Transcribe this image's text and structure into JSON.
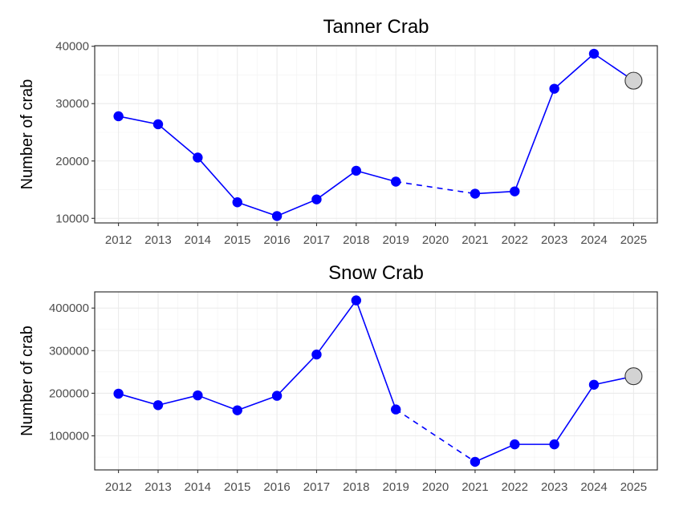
{
  "chart_data": [
    {
      "type": "line",
      "title": "Tanner Crab",
      "xlabel": "",
      "ylabel": "Number of crab",
      "x": [
        2012,
        2013,
        2014,
        2015,
        2016,
        2017,
        2018,
        2019,
        2020,
        2021,
        2022,
        2023,
        2024,
        2025
      ],
      "xticks": [
        "2012",
        "2013",
        "2014",
        "2015",
        "2016",
        "2017",
        "2018",
        "2019",
        "2020",
        "2021",
        "2022",
        "2023",
        "2024",
        "2025"
      ],
      "yticks": [
        10000,
        20000,
        30000,
        40000
      ],
      "ylim": [
        9200,
        40100
      ],
      "series": [
        {
          "values": [
            27800,
            26400,
            20600,
            12800,
            10400,
            13300,
            18300,
            16400,
            null,
            14300,
            14700,
            32600,
            38700,
            34000
          ],
          "point_styles": [
            "filled",
            "filled",
            "filled",
            "filled",
            "filled",
            "filled",
            "filled",
            "filled",
            null,
            "filled",
            "filled",
            "filled",
            "filled",
            "hollow"
          ],
          "gap_from": 2019,
          "gap_to": 2021
        }
      ],
      "grid": true,
      "colors": {
        "line": "#0000ff",
        "point": "#0000ff",
        "hollow_fill": "#d3d3d3",
        "hollow_edge": "#333333"
      }
    },
    {
      "type": "line",
      "title": "Snow Crab",
      "xlabel": "",
      "ylabel": "Number of crab",
      "x": [
        2012,
        2013,
        2014,
        2015,
        2016,
        2017,
        2018,
        2019,
        2020,
        2021,
        2022,
        2023,
        2024,
        2025
      ],
      "xticks": [
        "2012",
        "2013",
        "2014",
        "2015",
        "2016",
        "2017",
        "2018",
        "2019",
        "2020",
        "2021",
        "2022",
        "2023",
        "2024",
        "2025"
      ],
      "yticks": [
        100000,
        200000,
        300000,
        400000
      ],
      "ylim": [
        20000,
        438000
      ],
      "series": [
        {
          "values": [
            199000,
            172000,
            195000,
            160000,
            194000,
            291000,
            418000,
            162000,
            null,
            39000,
            80000,
            80000,
            220000,
            240000
          ],
          "point_styles": [
            "filled",
            "filled",
            "filled",
            "filled",
            "filled",
            "filled",
            "filled",
            "filled",
            null,
            "filled",
            "filled",
            "filled",
            "filled",
            "hollow"
          ],
          "gap_from": 2019,
          "gap_to": 2021
        }
      ],
      "grid": true,
      "colors": {
        "line": "#0000ff",
        "point": "#0000ff",
        "hollow_fill": "#d3d3d3",
        "hollow_edge": "#333333"
      }
    }
  ]
}
